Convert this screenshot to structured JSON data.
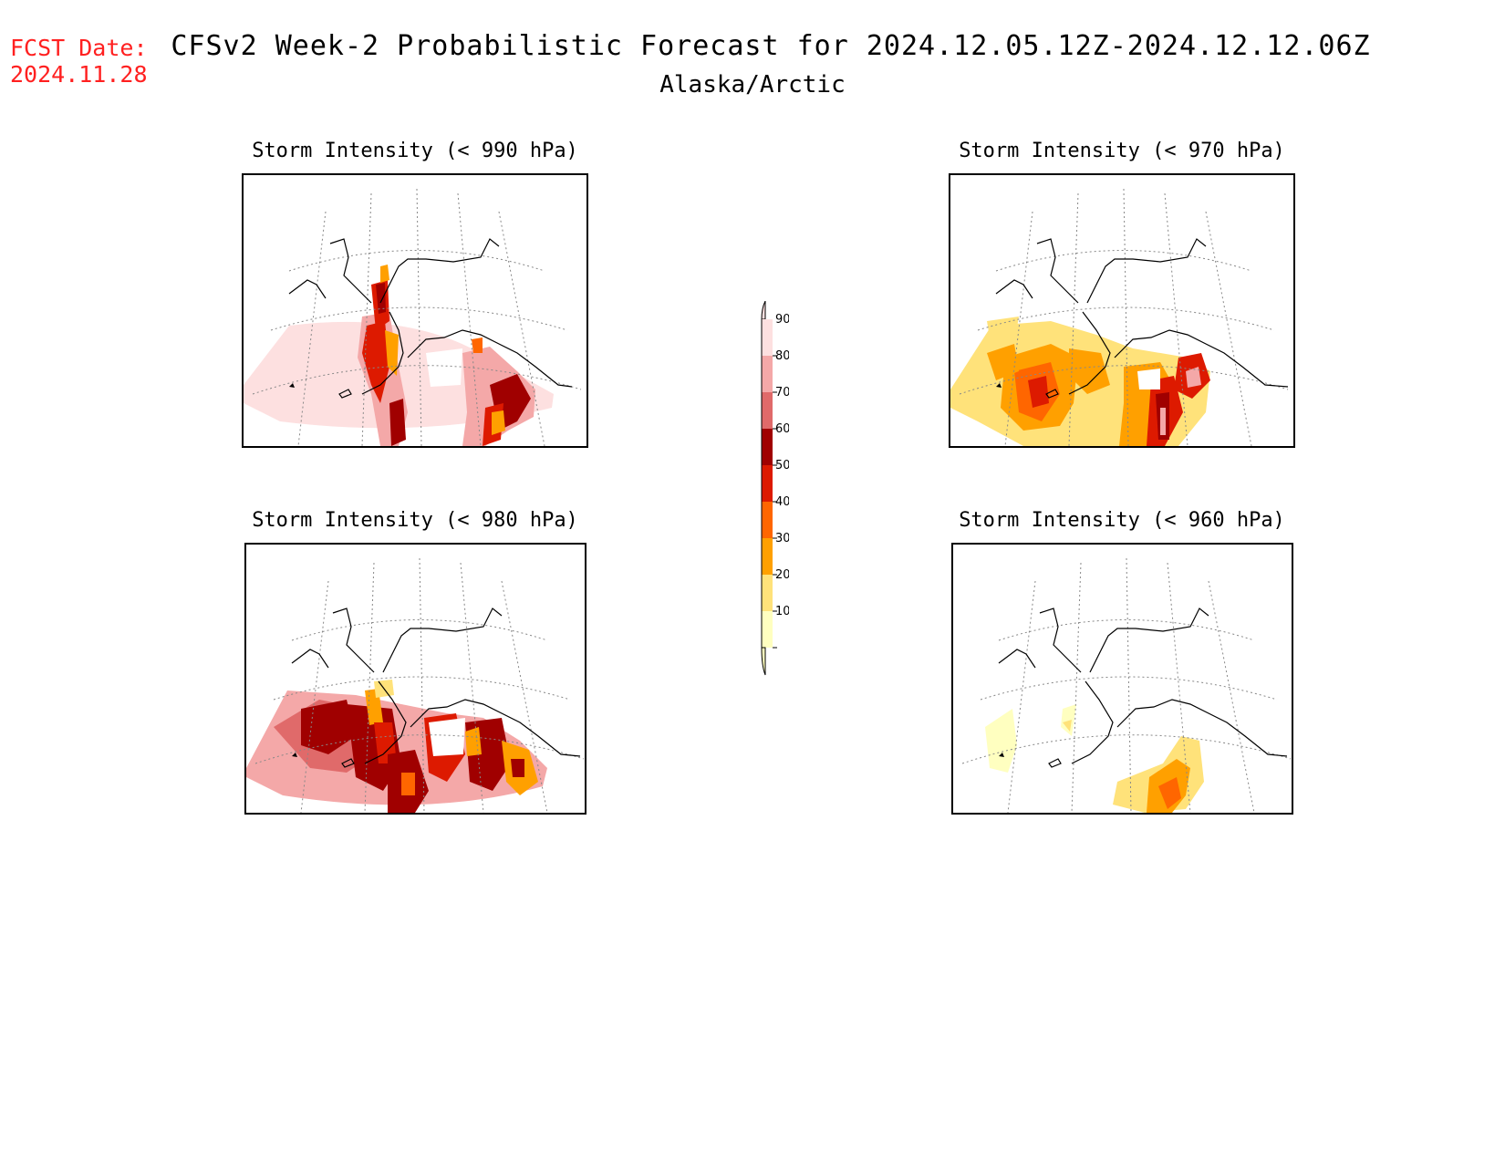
{
  "header": {
    "fcst_label": "FCST Date:",
    "fcst_date": "2024.11.28",
    "title": "CFSv2 Week-2 Probabilistic Forecast for 2024.12.05.12Z-2024.12.12.06Z",
    "subtitle": "Alaska/Arctic"
  },
  "panels": [
    {
      "id": "p990",
      "title": "Storm Intensity (< 990 hPa)"
    },
    {
      "id": "p970",
      "title": "Storm Intensity (< 970 hPa)"
    },
    {
      "id": "p980",
      "title": "Storm Intensity (< 980 hPa)"
    },
    {
      "id": "p960",
      "title": "Storm Intensity (< 960 hPa)"
    }
  ],
  "colorbar": {
    "levels": [
      "90",
      "80",
      "70",
      "60",
      "50",
      "40",
      "30",
      "20",
      "10"
    ],
    "colors": [
      "#fde0e0",
      "#f4a8a8",
      "#e06a6a",
      "#a00000",
      "#dd1a00",
      "#ff6600",
      "#ffa000",
      "#ffe27a",
      "#ffffc0"
    ]
  }
}
